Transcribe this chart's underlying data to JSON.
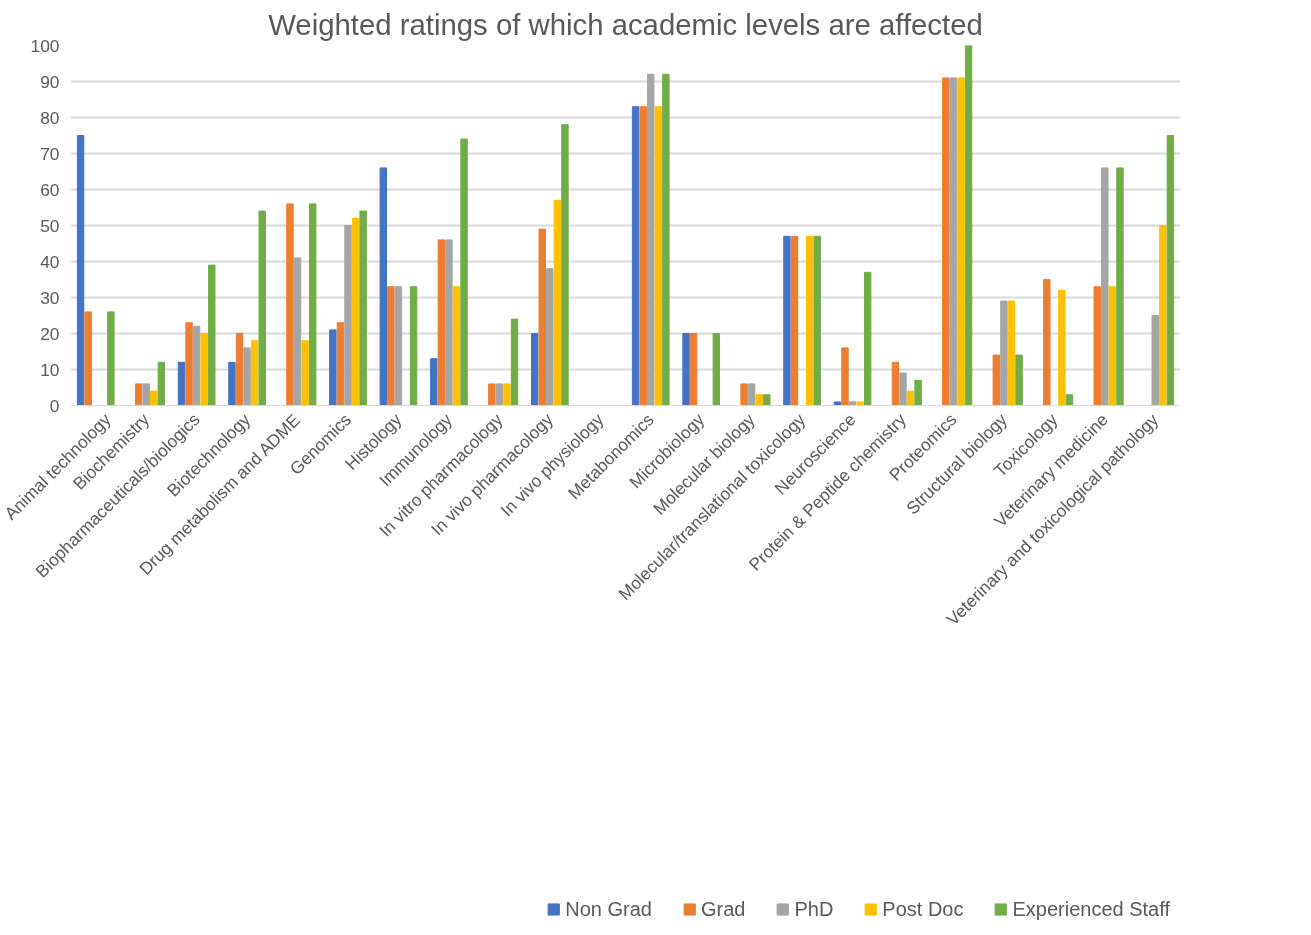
{
  "chart_data": {
    "type": "bar",
    "title": "Weighted ratings of which academic levels are affected",
    "categories": [
      "Animal technology",
      "Biochemistry",
      "Biopharmaceuticals/biologics",
      "Biotechnology",
      "Drug metabolism and ADME",
      "Genomics",
      "Histology",
      "Immunology",
      "In vitro pharmacology",
      "In vivo pharmacology",
      "In vivo physiology",
      "Metabonomics",
      "Microbiology",
      "Molecular biology",
      "Molecular/translational toxicology",
      "Neuroscience",
      "Protein & Peptide chemistry",
      "Proteomics",
      "Structural biology",
      "Toxicology",
      "Veterinary medicine",
      "Veterinary and toxicological pathology"
    ],
    "series": [
      {
        "name": "Non Grad",
        "color": "#4472c4",
        "values": [
          75,
          null,
          12,
          12,
          null,
          21,
          66,
          13,
          null,
          20,
          null,
          83,
          20,
          null,
          47,
          1,
          null,
          null,
          null,
          null,
          null,
          null
        ]
      },
      {
        "name": "Grad",
        "color": "#ed7d31",
        "values": [
          26,
          6,
          23,
          20,
          56,
          23,
          33,
          46,
          6,
          49,
          null,
          83,
          20,
          6,
          47,
          16,
          12,
          91,
          14,
          35,
          33,
          null
        ]
      },
      {
        "name": "PhD",
        "color": "#a5a5a5",
        "values": [
          null,
          6,
          22,
          16,
          41,
          50,
          33,
          46,
          6,
          38,
          null,
          92,
          null,
          6,
          null,
          1,
          9,
          91,
          29,
          null,
          66,
          25
        ]
      },
      {
        "name": "Post Doc",
        "color": "#ffc000",
        "values": [
          null,
          4,
          20,
          18,
          18,
          52,
          null,
          33,
          6,
          57,
          null,
          83,
          null,
          3,
          47,
          1,
          4,
          91,
          29,
          32,
          33,
          50
        ]
      },
      {
        "name": "Experienced Staff",
        "color": "#70ad47",
        "values": [
          26,
          12,
          39,
          54,
          56,
          54,
          33,
          74,
          24,
          78,
          null,
          92,
          20,
          3,
          47,
          37,
          7,
          100,
          14,
          3,
          66,
          75
        ]
      }
    ],
    "ylim": [
      0,
      100
    ],
    "yticks": [
      0,
      10,
      20,
      30,
      40,
      50,
      60,
      70,
      80,
      90,
      100
    ],
    "grid": "y",
    "legend": "bottom"
  }
}
